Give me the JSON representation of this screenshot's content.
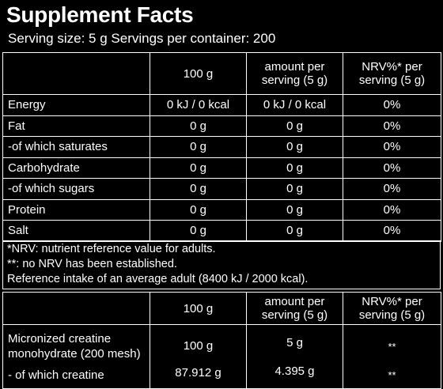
{
  "title": "Supplement Facts",
  "serving_line": "Serving size: 5 g Servings per container: 200",
  "nutrition_table": {
    "headers": [
      "",
      "100 g",
      "amount per serving (5 g)",
      "NRV%* per serving (5 g)"
    ],
    "header_col3_lines": [
      "amount per",
      "serving (5 g)"
    ],
    "header_col4_lines": [
      "NRV%* per",
      "serving (5 g)"
    ],
    "rows": [
      {
        "name": "Energy",
        "per100g": "0 kJ / 0 kcal",
        "per_serving": "0 kJ / 0 kcal",
        "nrv": "0%"
      },
      {
        "name": "Fat",
        "per100g": "0 g",
        "per_serving": "0 g",
        "nrv": "0%"
      },
      {
        "name": "-of which saturates",
        "per100g": "0 g",
        "per_serving": "0 g",
        "nrv": "0%"
      },
      {
        "name": "Carbohydrate",
        "per100g": "0 g",
        "per_serving": "0 g",
        "nrv": "0%"
      },
      {
        "name": "-of which sugars",
        "per100g": "0 g",
        "per_serving": "0 g",
        "nrv": "0%"
      },
      {
        "name": "Protein",
        "per100g": "0 g",
        "per_serving": "0 g",
        "nrv": "0%"
      },
      {
        "name": "Salt",
        "per100g": "0 g",
        "per_serving": "0 g",
        "nrv": "0%"
      }
    ]
  },
  "notes": [
    "*NRV: nutrient reference value for adults.",
    "**: no NRV has been established.",
    "Reference intake of an average adult (8400 kJ / 2000 kcal)."
  ],
  "ingredient_table": {
    "header_col2": "100 g",
    "header_col3_lines": [
      "amount per",
      "serving (5 g)"
    ],
    "header_col4_lines": [
      "NRV%* per",
      "serving (5 g)"
    ],
    "rows": [
      {
        "name_lines": [
          "Micronized creatine",
          "monohydrate (200 mesh)"
        ],
        "per100g": "100 g",
        "per_serving": "5 g",
        "nrv": "**"
      },
      {
        "name_lines": [
          "- of which creatine"
        ],
        "per100g": "87.912 g",
        "per_serving": "4.395 g",
        "nrv": "**"
      }
    ]
  },
  "colors": {
    "background": "#000000",
    "text": "#ffffff",
    "border": "#ffffff"
  }
}
